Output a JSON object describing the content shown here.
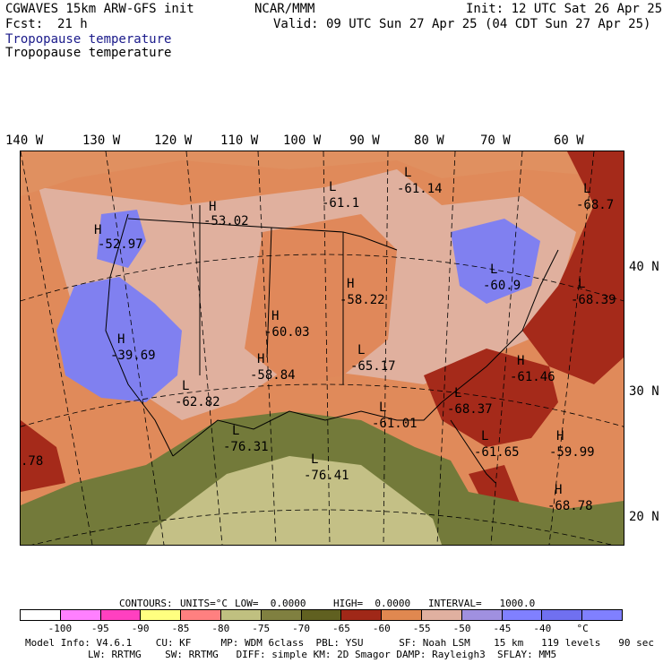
{
  "header": {
    "model_line": "CGWAVES 15km ARW-GFS init",
    "center": "NCAR/MMM",
    "init": "Init: 12 UTC Sat 26 Apr 25",
    "fcst_label": "Fcst:",
    "fcst_value": "21 h",
    "valid": "Valid: 09 UTC Sun 27 Apr 25 (04 CDT Sun 27 Apr 25)",
    "field_title_1": "Tropopause temperature",
    "field_title_2": "Tropopause temperature"
  },
  "longitude_labels": [
    "140 W",
    "130 W",
    "120 W",
    "110 W",
    "100 W",
    "90 W",
    "80 W",
    "70 W",
    "60 W"
  ],
  "latitude_labels": [
    "40 N",
    "30 N",
    "20 N"
  ],
  "map_labels": [
    {
      "letter": "H",
      "value": "-52.97"
    },
    {
      "letter": "H",
      "value": "-53.02"
    },
    {
      "letter": "L",
      "value": "-61.1"
    },
    {
      "letter": "L",
      "value": "-61.14"
    },
    {
      "letter": "L",
      "value": "-68.7"
    },
    {
      "letter": "H",
      "value": "-39.69"
    },
    {
      "letter": "H",
      "value": "-60.03"
    },
    {
      "letter": "H",
      "value": "-58.22"
    },
    {
      "letter": "L",
      "value": "-60.9"
    },
    {
      "letter": "L",
      "value": "-68.39"
    },
    {
      "letter": "H",
      "value": "-58.84"
    },
    {
      "letter": "L",
      "value": "-65.17"
    },
    {
      "letter": "H",
      "value": "-61.46"
    },
    {
      "letter": "L",
      "value": "-62.82"
    },
    {
      "letter": "L",
      "value": "-68.37"
    },
    {
      "letter": "L",
      "value": "-76.31"
    },
    {
      "letter": "L",
      "value": "-61.01"
    },
    {
      "letter": "L",
      "value": "-76.41"
    },
    {
      "letter": "L",
      "value": "-61.65"
    },
    {
      "letter": "H",
      "value": "-59.99"
    },
    {
      "letter": "H",
      "value": "-68.78"
    },
    {
      "letter": "",
      "value": ".78"
    }
  ],
  "contours": {
    "label": "CONTOURS:",
    "units": "UNITS=°C",
    "low": "LOW=  0.0000",
    "high": "HIGH=  0.0000",
    "interval": "INTERVAL=   1000.0"
  },
  "colorbar": {
    "colors": [
      "#ffffff",
      "#ff80ff",
      "#ff40c0",
      "#ffff80",
      "#ff8080",
      "#c0c080",
      "#808040",
      "#606020",
      "#a02818",
      "#e08850",
      "#e0b0a0",
      "#a090e0",
      "#8080ff",
      "#7070f0",
      "#8080ff"
    ],
    "ticks": [
      "-100",
      "-95",
      "-90",
      "-85",
      "-80",
      "-75",
      "-70",
      "-65",
      "-60",
      "-55",
      "-50",
      "-45",
      "-40",
      "°C"
    ]
  },
  "model_info": {
    "line1": "Model Info: V4.6.1    CU: KF     MP: WDM 6class  PBL: YSU      SF: Noah LSM    15 km   119 levels   90 sec",
    "line2": "LW: RRTMG    SW: RRTMG   DIFF: simple KM: 2D Smagor DAMP: Rayleigh3  SFLAY: MM5"
  }
}
